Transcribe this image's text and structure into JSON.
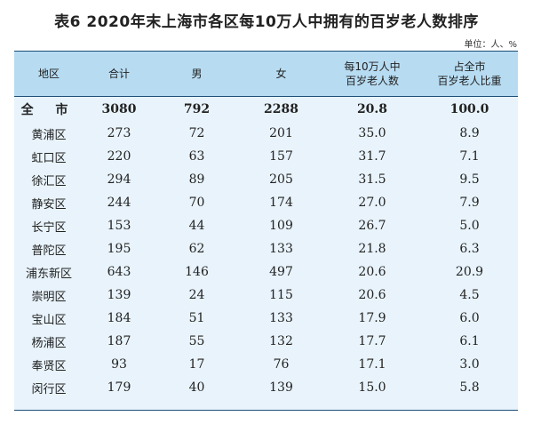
{
  "title": "表6  2020年末上海市各区每10万人中拥有的百岁老人数排序",
  "unit": "单位：人、%",
  "headers": {
    "region": "地区",
    "total": "合计",
    "male": "男",
    "female": "女",
    "per100k_l1": "每10万人中",
    "per100k_l2": "百岁老人数",
    "share_l1": "占全市",
    "share_l2": "百岁老人比重"
  },
  "rows": [
    {
      "region": "全  市",
      "total": "3080",
      "male": "792",
      "female": "2288",
      "per100k": "20.8",
      "share": "100.0"
    },
    {
      "region": "黄浦区",
      "total": "273",
      "male": "72",
      "female": "201",
      "per100k": "35.0",
      "share": "8.9"
    },
    {
      "region": "虹口区",
      "total": "220",
      "male": "63",
      "female": "157",
      "per100k": "31.7",
      "share": "7.1"
    },
    {
      "region": "徐汇区",
      "total": "294",
      "male": "89",
      "female": "205",
      "per100k": "31.5",
      "share": "9.5"
    },
    {
      "region": "静安区",
      "total": "244",
      "male": "70",
      "female": "174",
      "per100k": "27.0",
      "share": "7.9"
    },
    {
      "region": "长宁区",
      "total": "153",
      "male": "44",
      "female": "109",
      "per100k": "26.7",
      "share": "5.0"
    },
    {
      "region": "普陀区",
      "total": "195",
      "male": "62",
      "female": "133",
      "per100k": "21.8",
      "share": "6.3"
    },
    {
      "region": "浦东新区",
      "total": "643",
      "male": "146",
      "female": "497",
      "per100k": "20.6",
      "share": "20.9"
    },
    {
      "region": "崇明区",
      "total": "139",
      "male": "24",
      "female": "115",
      "per100k": "20.6",
      "share": "4.5"
    },
    {
      "region": "宝山区",
      "total": "184",
      "male": "51",
      "female": "133",
      "per100k": "17.9",
      "share": "6.0"
    },
    {
      "region": "杨浦区",
      "total": "187",
      "male": "55",
      "female": "132",
      "per100k": "17.7",
      "share": "6.1"
    },
    {
      "region": "奉贤区",
      "total": "93",
      "male": "17",
      "female": "76",
      "per100k": "17.1",
      "share": "3.0"
    },
    {
      "region": "闵行区",
      "total": "179",
      "male": "40",
      "female": "139",
      "per100k": "15.0",
      "share": "5.8"
    }
  ]
}
